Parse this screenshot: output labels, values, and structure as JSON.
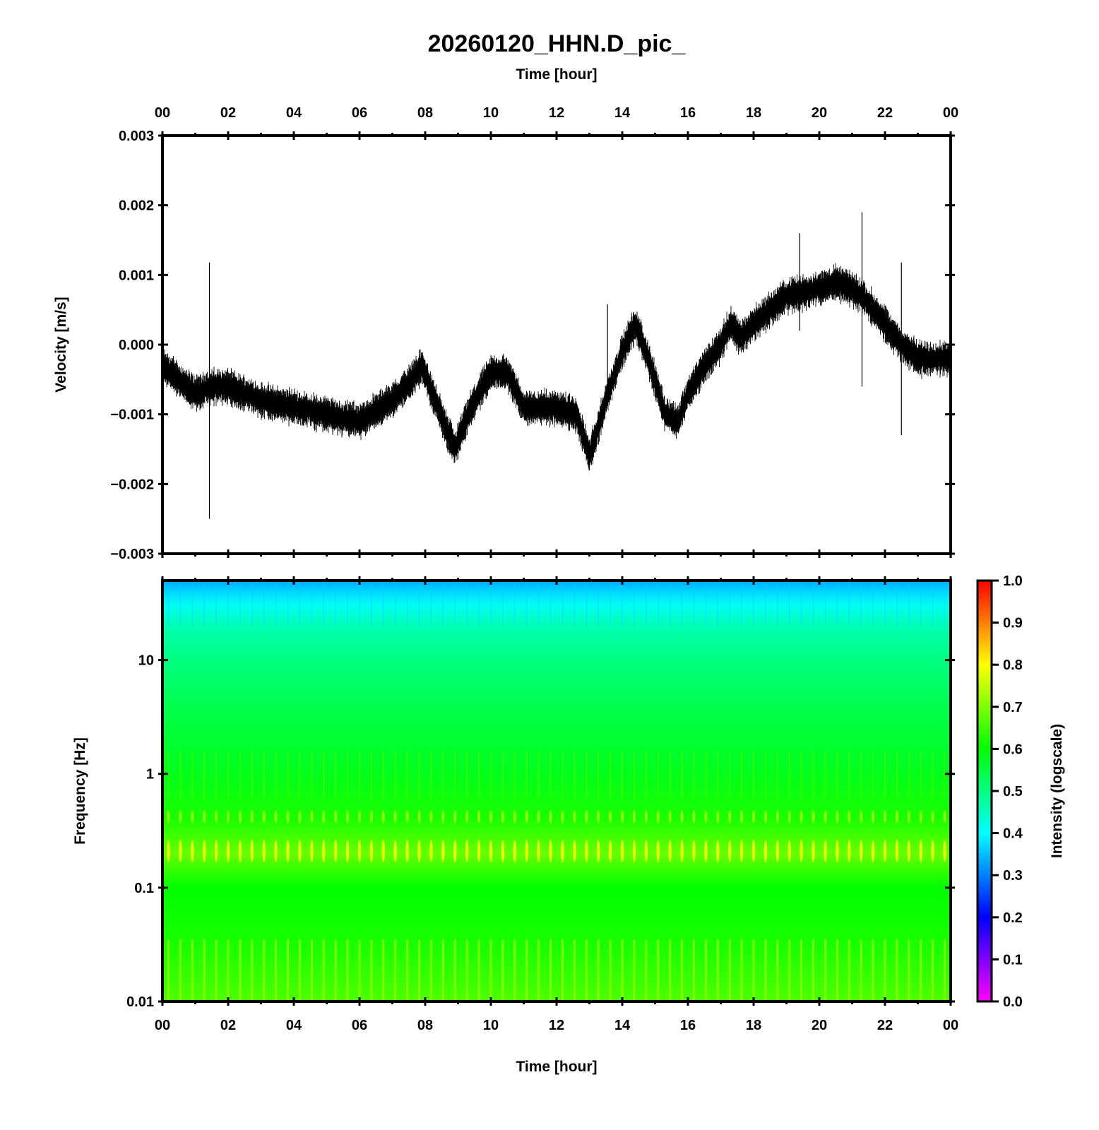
{
  "title": "20260120_HHN.D_pic_",
  "chart_data": [
    {
      "type": "line",
      "panel": "velocity",
      "top_xlabel": "Time [hour]",
      "ylabel": "Velocity [m/s]",
      "xlim": [
        0,
        24
      ],
      "ylim": [
        -0.003,
        0.003
      ],
      "x_ticks": [
        "00",
        "02",
        "04",
        "06",
        "08",
        "10",
        "12",
        "14",
        "16",
        "18",
        "20",
        "22",
        "00"
      ],
      "y_ticks": [
        "0.003",
        "0.002",
        "0.001",
        "0.000",
        "−0.001",
        "−0.002",
        "−0.003"
      ],
      "y_tick_values": [
        0.003,
        0.002,
        0.001,
        0.0,
        -0.001,
        -0.002,
        -0.003
      ],
      "series": [
        {
          "color": "#000000",
          "trend": {
            "x": [
              0,
              0.5,
              1,
              1.5,
              2,
              3,
              4,
              5,
              6,
              6.5,
              7,
              7.6,
              7.9,
              8.3,
              8.9,
              9.4,
              10,
              10.5,
              11,
              12,
              12.6,
              13,
              13.5,
              14,
              14.4,
              14.8,
              15.3,
              15.7,
              16,
              16.5,
              17,
              17.3,
              17.6,
              18,
              18.5,
              19,
              20,
              20.5,
              21,
              21.5,
              22,
              22.5,
              23,
              23.5,
              24
            ],
            "y": [
              -0.0003,
              -0.0005,
              -0.0007,
              -0.0006,
              -0.0006,
              -0.0008,
              -0.0009,
              -0.001,
              -0.0011,
              -0.00095,
              -0.0008,
              -0.0005,
              -0.0003,
              -0.0008,
              -0.0015,
              -0.0009,
              -0.0004,
              -0.0004,
              -0.0009,
              -0.0009,
              -0.001,
              -0.0016,
              -0.0008,
              -0.0001,
              0.0003,
              -0.0002,
              -0.001,
              -0.0011,
              -0.0007,
              -0.0003,
              0.0,
              0.0003,
              0.0001,
              0.0003,
              0.0005,
              0.0007,
              0.0008,
              0.0009,
              0.0008,
              0.0006,
              0.0003,
              0.0,
              -0.0002,
              -0.0002,
              -0.0002
            ]
          },
          "noise_amplitude": 0.00025,
          "spikes": [
            {
              "x": 1.43,
              "ymin": -0.0025,
              "ymax": 0.00118
            },
            {
              "x": 13.55,
              "ymin": -0.0008,
              "ymax": 0.00058
            },
            {
              "x": 19.4,
              "ymin": 0.0002,
              "ymax": 0.0016
            },
            {
              "x": 21.3,
              "ymin": -0.0006,
              "ymax": 0.0019
            },
            {
              "x": 22.5,
              "ymin": -0.0013,
              "ymax": 0.00118
            }
          ]
        }
      ]
    },
    {
      "type": "heatmap",
      "panel": "spectrogram",
      "xlabel": "Time [hour]",
      "ylabel": "Frequency [Hz]",
      "xlim": [
        0,
        24
      ],
      "ylim": [
        0.01,
        50
      ],
      "yscale": "log",
      "x_ticks": [
        "00",
        "02",
        "04",
        "06",
        "08",
        "10",
        "12",
        "14",
        "16",
        "18",
        "20",
        "22",
        "00"
      ],
      "y_ticks": [
        "10",
        "1",
        "0.1",
        "0.01"
      ],
      "y_tick_values": [
        10,
        1,
        0.1,
        0.01
      ],
      "colorbar": {
        "label": "Intensity (logscale)",
        "range": [
          0,
          1
        ],
        "ticks": [
          "1.0",
          "0.9",
          "0.8",
          "0.7",
          "0.6",
          "0.5",
          "0.4",
          "0.3",
          "0.2",
          "0.1",
          "0.0"
        ],
        "colors": [
          "#ff00ff",
          "#0000ff",
          "#00ffff",
          "#00ff00",
          "#ffff00",
          "#ff0000"
        ]
      },
      "intensity_profile": {
        "frequency_hz": [
          50,
          40,
          30,
          20,
          10,
          3,
          1,
          0.4,
          0.2,
          0.1,
          0.03,
          0.01
        ],
        "intensity": [
          0.33,
          0.37,
          0.41,
          0.46,
          0.5,
          0.55,
          0.58,
          0.62,
          0.68,
          0.6,
          0.62,
          0.66
        ]
      },
      "column_count": 66
    }
  ]
}
